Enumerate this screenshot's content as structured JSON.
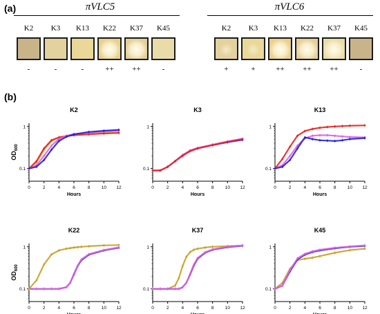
{
  "panel_a": {
    "label": "(a)",
    "groups": [
      {
        "title": "πVLC5",
        "strains": [
          "K2",
          "K3",
          "K13",
          "K22",
          "K37",
          "K45"
        ],
        "scores": [
          "-",
          "-",
          "-",
          "++",
          "++",
          "-"
        ],
        "lysis": [
          "none",
          "none",
          "none",
          "strong",
          "strong",
          "none"
        ]
      },
      {
        "title": "πVLC6",
        "strains": [
          "K2",
          "K3",
          "K13",
          "K22",
          "K37",
          "K45"
        ],
        "scores": [
          "+",
          "+",
          "++",
          "++",
          "++",
          "-"
        ],
        "lysis": [
          "faint",
          "faint",
          "strong",
          "strong",
          "strong",
          "none"
        ]
      }
    ]
  },
  "panel_b": {
    "label": "(b)"
  },
  "chart_data": [
    {
      "type": "line",
      "title": "K2",
      "xlabel": "Hours",
      "ylabel": "OD600",
      "yscale": "log",
      "xlim": [
        0,
        12
      ],
      "ylim": [
        0.05,
        1.2
      ],
      "xticks": [
        0,
        2,
        4,
        6,
        8,
        10,
        12
      ],
      "yticks": [
        0.1,
        1
      ],
      "ytick_labels": [
        "0.1",
        "1"
      ],
      "x": [
        0,
        1,
        2,
        3,
        4,
        5,
        6,
        8,
        10,
        12
      ],
      "series": [
        {
          "color": "#e8b020",
          "values": [
            0.1,
            0.14,
            0.28,
            0.45,
            0.55,
            0.6,
            0.64,
            0.68,
            0.71,
            0.73
          ]
        },
        {
          "color": "#e82020",
          "values": [
            0.1,
            0.15,
            0.3,
            0.47,
            0.55,
            0.59,
            0.62,
            0.65,
            0.68,
            0.7
          ]
        },
        {
          "color": "#e060e0",
          "values": [
            0.1,
            0.12,
            0.2,
            0.35,
            0.5,
            0.6,
            0.66,
            0.72,
            0.76,
            0.8
          ]
        },
        {
          "color": "#2020e0",
          "values": [
            0.1,
            0.11,
            0.16,
            0.28,
            0.45,
            0.57,
            0.65,
            0.74,
            0.79,
            0.83
          ]
        }
      ]
    },
    {
      "type": "line",
      "title": "K3",
      "xlabel": "Hours",
      "ylabel": "",
      "yscale": "log",
      "xlim": [
        0,
        12
      ],
      "ylim": [
        0.05,
        1.2
      ],
      "xticks": [
        0,
        2,
        4,
        6,
        8,
        10,
        12
      ],
      "yticks": [
        0.1,
        1
      ],
      "ytick_labels": [
        "0.1",
        "1"
      ],
      "x": [
        0,
        1,
        2,
        3,
        4,
        5,
        6,
        8,
        10,
        12
      ],
      "series": [
        {
          "color": "#2020e0",
          "values": [
            0.09,
            0.09,
            0.11,
            0.15,
            0.21,
            0.26,
            0.3,
            0.36,
            0.42,
            0.48
          ]
        },
        {
          "color": "#e060e0",
          "values": [
            0.09,
            0.09,
            0.11,
            0.15,
            0.21,
            0.27,
            0.31,
            0.37,
            0.44,
            0.51
          ]
        },
        {
          "color": "#e82020",
          "values": [
            0.09,
            0.09,
            0.11,
            0.15,
            0.2,
            0.26,
            0.3,
            0.36,
            0.43,
            0.5
          ]
        }
      ]
    },
    {
      "type": "line",
      "title": "K13",
      "xlabel": "Hours",
      "ylabel": "",
      "yscale": "log",
      "xlim": [
        0,
        12
      ],
      "ylim": [
        0.05,
        1.2
      ],
      "xticks": [
        0,
        2,
        4,
        6,
        8,
        10,
        12
      ],
      "yticks": [
        0.1,
        1
      ],
      "ytick_labels": [
        "0.1",
        "1"
      ],
      "x": [
        0,
        1,
        2,
        3,
        4,
        5,
        6,
        7,
        8,
        9,
        10,
        12
      ],
      "series": [
        {
          "color": "#e82020",
          "values": [
            0.1,
            0.17,
            0.33,
            0.6,
            0.78,
            0.87,
            0.93,
            0.97,
            1.0,
            1.02,
            1.04,
            1.06
          ]
        },
        {
          "color": "#e060e0",
          "values": [
            0.1,
            0.12,
            0.2,
            0.35,
            0.52,
            0.6,
            0.62,
            0.62,
            0.6,
            0.58,
            0.56,
            0.55
          ]
        },
        {
          "color": "#2020e0",
          "values": [
            0.1,
            0.11,
            0.16,
            0.3,
            0.55,
            0.5,
            0.47,
            0.46,
            0.45,
            0.47,
            0.5,
            0.53
          ]
        }
      ]
    },
    {
      "type": "line",
      "title": "K22",
      "xlabel": "Hours",
      "ylabel": "OD600",
      "yscale": "log",
      "xlim": [
        0,
        12
      ],
      "ylim": [
        0.05,
        1.2
      ],
      "xticks": [
        0,
        2,
        4,
        6,
        8,
        10,
        12
      ],
      "yticks": [
        0.1,
        1
      ],
      "ytick_labels": [
        "0.1",
        "1"
      ],
      "x": [
        0,
        1,
        2,
        3,
        4,
        5,
        5.5,
        6,
        6.5,
        7,
        8,
        10,
        12
      ],
      "series": [
        {
          "color": "#2020e0",
          "values": [
            0.1,
            0.1,
            0.1,
            0.1,
            0.1,
            0.11,
            0.14,
            0.22,
            0.35,
            0.48,
            0.65,
            0.82,
            0.95
          ]
        },
        {
          "color": "#e060e0",
          "values": [
            0.1,
            0.1,
            0.1,
            0.1,
            0.1,
            0.11,
            0.14,
            0.23,
            0.36,
            0.5,
            0.67,
            0.84,
            0.97
          ]
        },
        {
          "color": "#c8a020",
          "values": [
            0.1,
            0.16,
            0.38,
            0.66,
            0.82,
            0.9,
            0.93,
            0.96,
            0.98,
            1.0,
            1.03,
            1.08,
            1.1
          ]
        }
      ]
    },
    {
      "type": "line",
      "title": "K37",
      "xlabel": "Hours",
      "ylabel": "",
      "yscale": "log",
      "xlim": [
        0,
        12
      ],
      "ylim": [
        0.05,
        1.2
      ],
      "xticks": [
        0,
        2,
        4,
        6,
        8,
        10,
        12
      ],
      "yticks": [
        0.1,
        1
      ],
      "ytick_labels": [
        "0.1",
        "1"
      ],
      "x": [
        0,
        1,
        2,
        3,
        3.5,
        4,
        4.5,
        5,
        5.5,
        6,
        7,
        8,
        10,
        12
      ],
      "series": [
        {
          "color": "#c8a020",
          "values": [
            0.1,
            0.1,
            0.1,
            0.12,
            0.18,
            0.35,
            0.58,
            0.75,
            0.85,
            0.9,
            0.96,
            1.0,
            1.04,
            1.07
          ]
        },
        {
          "color": "#2020e0",
          "values": [
            0.1,
            0.1,
            0.1,
            0.1,
            0.1,
            0.11,
            0.14,
            0.22,
            0.36,
            0.52,
            0.72,
            0.85,
            0.98,
            1.06
          ]
        },
        {
          "color": "#e060e0",
          "values": [
            0.1,
            0.1,
            0.1,
            0.1,
            0.1,
            0.11,
            0.14,
            0.23,
            0.38,
            0.54,
            0.74,
            0.87,
            1.0,
            1.08
          ]
        }
      ]
    },
    {
      "type": "line",
      "title": "K45",
      "xlabel": "Hours",
      "ylabel": "",
      "yscale": "log",
      "xlim": [
        0,
        12
      ],
      "ylim": [
        0.05,
        1.2
      ],
      "xticks": [
        0,
        2,
        4,
        6,
        8,
        10,
        12
      ],
      "yticks": [
        0.1,
        1
      ],
      "ytick_labels": [
        "0.1",
        "1"
      ],
      "x": [
        0,
        1,
        2,
        3,
        4,
        5,
        6,
        8,
        10,
        12
      ],
      "series": [
        {
          "color": "#c8a020",
          "values": [
            0.1,
            0.14,
            0.3,
            0.48,
            0.52,
            0.55,
            0.6,
            0.72,
            0.83,
            0.9
          ]
        },
        {
          "color": "#2020e0",
          "values": [
            0.1,
            0.12,
            0.26,
            0.5,
            0.65,
            0.75,
            0.82,
            0.92,
            1.0,
            1.05
          ]
        },
        {
          "color": "#e060e0",
          "values": [
            0.1,
            0.12,
            0.28,
            0.53,
            0.68,
            0.78,
            0.85,
            0.95,
            1.02,
            1.08
          ]
        }
      ]
    }
  ]
}
